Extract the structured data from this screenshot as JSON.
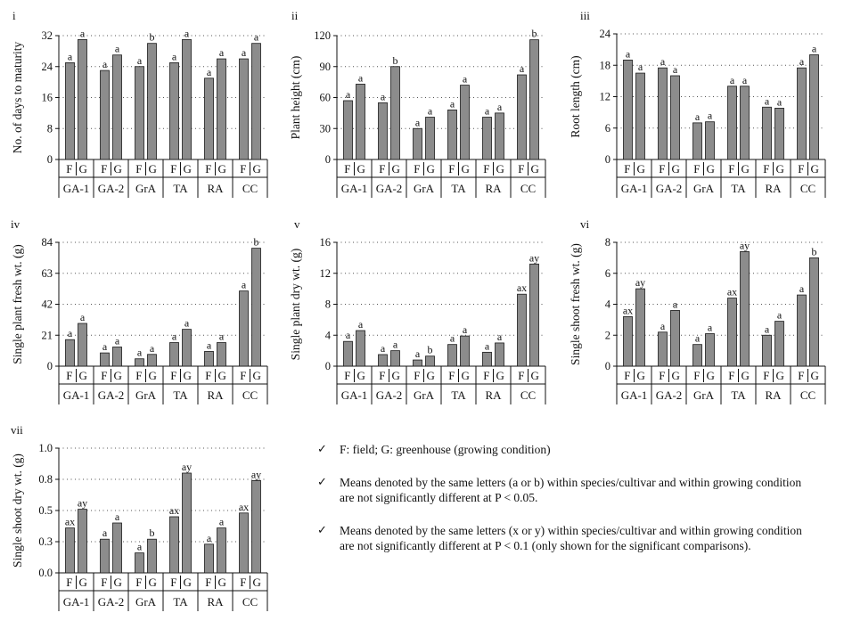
{
  "chart_data": [
    {
      "type": "bar",
      "panel": "i",
      "ylabel": "No. of days to maturity",
      "ylim": [
        0,
        32
      ],
      "yticks": [
        "0",
        "8",
        "16",
        "24",
        "32"
      ],
      "categories": [
        "GA-1",
        "GA-2",
        "GrA",
        "TA",
        "RA",
        "CC"
      ],
      "conditions": [
        "F",
        "G"
      ],
      "series": [
        {
          "name": "F",
          "values": [
            25,
            23,
            24,
            25,
            21,
            26
          ],
          "labels": [
            "a",
            "a",
            "a",
            "a",
            "a",
            "a"
          ]
        },
        {
          "name": "G",
          "values": [
            31,
            27,
            30,
            31,
            26,
            30
          ],
          "labels": [
            "a",
            "a",
            "b",
            "a",
            "a",
            "a"
          ]
        }
      ]
    },
    {
      "type": "bar",
      "panel": "ii",
      "ylabel": "Plant height (cm)",
      "ylim": [
        0,
        120
      ],
      "yticks": [
        "0",
        "30",
        "60",
        "90",
        "120"
      ],
      "categories": [
        "GA-1",
        "GA-2",
        "GrA",
        "TA",
        "RA",
        "CC"
      ],
      "conditions": [
        "F",
        "G"
      ],
      "series": [
        {
          "name": "F",
          "values": [
            57,
            55,
            30,
            48,
            41,
            82
          ],
          "labels": [
            "a",
            "a",
            "a",
            "a",
            "a",
            "a"
          ]
        },
        {
          "name": "G",
          "values": [
            73,
            90,
            41,
            72,
            45,
            116
          ],
          "labels": [
            "a",
            "b",
            "a",
            "a",
            "a",
            "b"
          ]
        }
      ]
    },
    {
      "type": "bar",
      "panel": "iii",
      "ylabel": "Root length (cm)",
      "ylim": [
        0,
        24
      ],
      "yticks": [
        "0",
        "6",
        "12",
        "18",
        "24"
      ],
      "categories": [
        "GA-1",
        "GA-2",
        "GrA",
        "TA",
        "RA",
        "CC"
      ],
      "conditions": [
        "F",
        "G"
      ],
      "series": [
        {
          "name": "F",
          "values": [
            19,
            17.5,
            7,
            14,
            10,
            17.5
          ],
          "labels": [
            "a",
            "a",
            "a",
            "a",
            "a",
            "a"
          ]
        },
        {
          "name": "G",
          "values": [
            16.5,
            16,
            7.2,
            14,
            9.8,
            20
          ],
          "labels": [
            "a",
            "a",
            "a",
            "a",
            "a",
            "a"
          ]
        }
      ]
    },
    {
      "type": "bar",
      "panel": "iv",
      "ylabel": "Single plant fresh wt. (g)",
      "ylim": [
        0,
        84
      ],
      "yticks": [
        "0",
        "21",
        "42",
        "63",
        "84"
      ],
      "categories": [
        "GA-1",
        "GA-2",
        "GrA",
        "TA",
        "RA",
        "CC"
      ],
      "conditions": [
        "F",
        "G"
      ],
      "series": [
        {
          "name": "F",
          "values": [
            18,
            9,
            5,
            16,
            10,
            51
          ],
          "labels": [
            "a",
            "a",
            "a",
            "a",
            "a",
            "a"
          ]
        },
        {
          "name": "G",
          "values": [
            29,
            13,
            8,
            25,
            16,
            80
          ],
          "labels": [
            "a",
            "a",
            "a",
            "a",
            "a",
            "b"
          ]
        }
      ]
    },
    {
      "type": "bar",
      "panel": "v",
      "ylabel": "Single plant dry wt. (g)",
      "ylim": [
        0,
        16
      ],
      "yticks": [
        "0",
        "4",
        "8",
        "12",
        "16"
      ],
      "categories": [
        "GA-1",
        "GA-2",
        "GrA",
        "TA",
        "RA",
        "CC"
      ],
      "conditions": [
        "F",
        "G"
      ],
      "series": [
        {
          "name": "F",
          "values": [
            3.2,
            1.5,
            0.8,
            2.8,
            1.8,
            9.3
          ],
          "labels": [
            "a",
            "a",
            "a",
            "a",
            "a",
            "ax"
          ]
        },
        {
          "name": "G",
          "values": [
            4.6,
            2.0,
            1.3,
            3.9,
            3.0,
            13.2
          ],
          "labels": [
            "a",
            "a",
            "b",
            "a",
            "a",
            "ay"
          ]
        }
      ]
    },
    {
      "type": "bar",
      "panel": "vi",
      "ylabel": "Single shoot fresh wt. (g)",
      "ylim": [
        0,
        8
      ],
      "yticks": [
        "0",
        "2",
        "4",
        "6",
        "8"
      ],
      "categories": [
        "GA-1",
        "GA-2",
        "GrA",
        "TA",
        "RA",
        "CC"
      ],
      "conditions": [
        "F",
        "G"
      ],
      "series": [
        {
          "name": "F",
          "values": [
            3.2,
            2.2,
            1.4,
            4.4,
            2.0,
            4.6
          ],
          "labels": [
            "ax",
            "a",
            "a",
            "ax",
            "a",
            "a"
          ]
        },
        {
          "name": "G",
          "values": [
            5.0,
            3.6,
            2.1,
            7.4,
            2.9,
            7.0
          ],
          "labels": [
            "ay",
            "a",
            "a",
            "ay",
            "a",
            "b"
          ]
        }
      ]
    },
    {
      "type": "bar",
      "panel": "vii",
      "ylabel": "Single shoot dry wt. (g)",
      "ylim": [
        0,
        1.0
      ],
      "yticks": [
        "0.0",
        "0.3",
        "0.5",
        "0.8",
        "1.0"
      ],
      "categories": [
        "GA-1",
        "GA-2",
        "GrA",
        "TA",
        "RA",
        "CC"
      ],
      "conditions": [
        "F",
        "G"
      ],
      "series": [
        {
          "name": "F",
          "values": [
            0.36,
            0.27,
            0.16,
            0.45,
            0.23,
            0.48
          ],
          "labels": [
            "ax",
            "a",
            "a",
            "ax",
            "a",
            "ax"
          ]
        },
        {
          "name": "G",
          "values": [
            0.51,
            0.4,
            0.27,
            0.8,
            0.36,
            0.74
          ],
          "labels": [
            "ay",
            "a",
            "b",
            "ay",
            "a",
            "ay"
          ]
        }
      ]
    }
  ],
  "notes": [
    "F: field; G: greenhouse (growing condition)",
    "Means denoted by the same letters (a or b) within species/cultivar and within growing condition are not significantly different at P < 0.05.",
    "Means denoted by the same letters (x or y) within species/cultivar and within growing condition are not significantly different at P < 0.1 (only shown for the significant comparisons)."
  ],
  "checkmark_icon": "✓",
  "colors": {
    "bar": "#8c8c8c",
    "bar_stroke": "#1a1a1a",
    "grid": "#555555"
  }
}
